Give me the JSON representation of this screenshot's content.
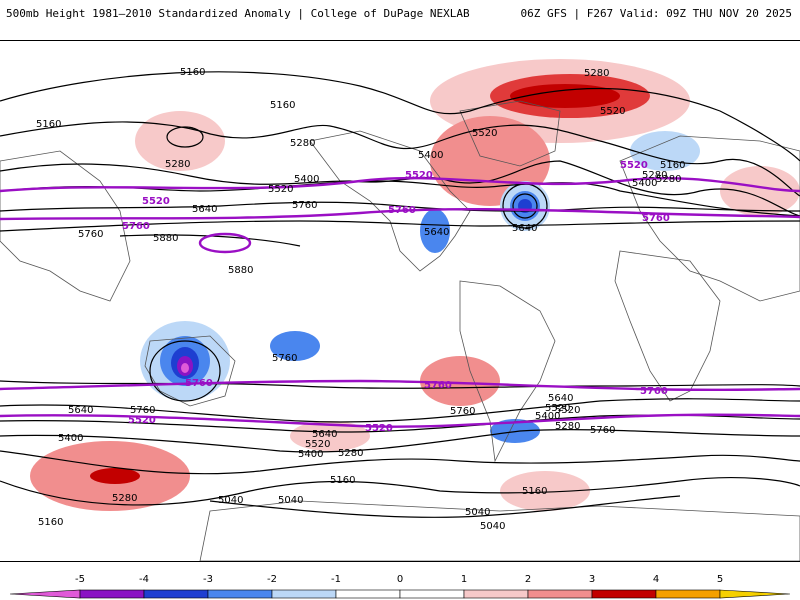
{
  "header": {
    "title_left": "500mb Height 1981–2010 Standardized Anomaly | College of DuPage NEXLAB",
    "title_right": "06Z GFS | F267 Valid: 09Z THU NOV 20 2025"
  },
  "colors": {
    "neg5": "#e05ad8",
    "neg4": "#8a13c4",
    "neg3": "#1e3fd1",
    "neg2": "#4a86ee",
    "neg1": "#bcd8f7",
    "pos1": "#f7c9c9",
    "pos2": "#f18e8e",
    "pos3": "#e03a3a",
    "pos4": "#c20000",
    "pos5": "#f5a000",
    "highlight_contour": "#9a0fc4",
    "contour": "#000000",
    "coast": "#555555"
  },
  "contour_labels": {
    "black": [
      "5160",
      "5160",
      "5160",
      "5280",
      "5280",
      "5280",
      "5400",
      "5520",
      "5520",
      "5640",
      "5760",
      "5880",
      "5880",
      "5760",
      "5640",
      "5640",
      "5520",
      "5400",
      "5400",
      "5280",
      "5160",
      "5040",
      "5040",
      "5160",
      "5280",
      "5040",
      "5040",
      "5520",
      "5400",
      "5520",
      "5640",
      "5760",
      "5760",
      "5760",
      "5640",
      "5400",
      "5280",
      "5400",
      "5640",
      "5760",
      "5280",
      "5160",
      "5160",
      "5280",
      "5520"
    ],
    "purple": [
      "5520",
      "5520",
      "5760",
      "5760",
      "5760",
      "5520",
      "5760",
      "5760",
      "5520",
      "5520",
      "5760"
    ]
  },
  "colorbar": {
    "ticks": [
      "-5",
      "-4",
      "-3",
      "-2",
      "-1",
      "0",
      "1",
      "2",
      "3",
      "4",
      "5"
    ]
  }
}
